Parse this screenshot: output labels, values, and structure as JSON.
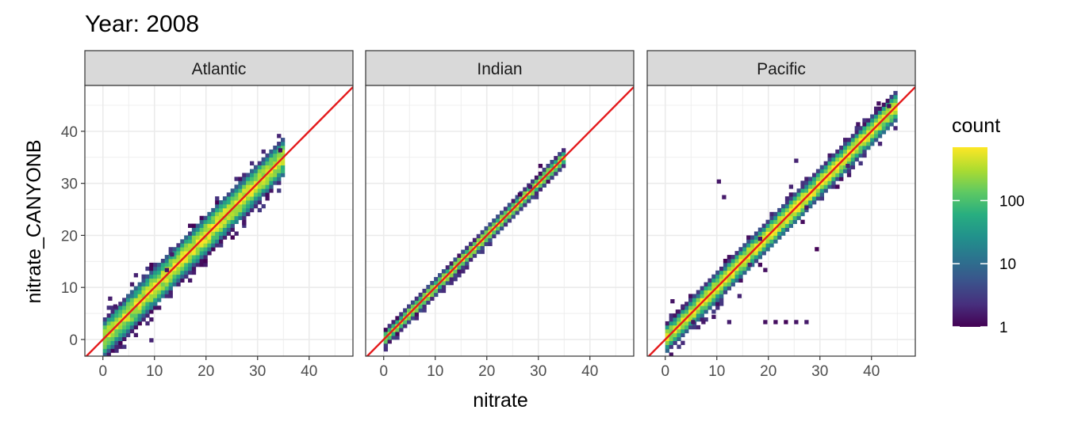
{
  "chart_data": {
    "type": "heatmap",
    "title": "Year: 2008",
    "xlabel": "nitrate",
    "ylabel": "nitrate_CANYONB",
    "xlim": [
      -3.5,
      48.5
    ],
    "ylim": [
      -3.2,
      48.8
    ],
    "x_ticks": [
      0,
      10,
      20,
      30,
      40
    ],
    "y_ticks": [
      0,
      10,
      20,
      30,
      40
    ],
    "grid": true,
    "reference_line": {
      "slope": 1,
      "intercept": 0,
      "color": "#e41a1c"
    },
    "legend": {
      "title": "count",
      "scale": "log10",
      "range": [
        1,
        700
      ],
      "ticks": [
        1,
        10,
        100
      ],
      "tick_labels": [
        "1",
        "10",
        "100"
      ],
      "placement": "right",
      "colors": [
        "#440154",
        "#472f7d",
        "#3b528b",
        "#2c728e",
        "#21918c",
        "#28ae80",
        "#5ec962",
        "#addc30",
        "#fde725"
      ]
    },
    "panels": [
      {
        "name": "Atlantic",
        "x_range": [
          0,
          35
        ],
        "spread": 2.2,
        "peak_count": 600,
        "outliers": [
          [
            9,
            -0.5
          ],
          [
            1,
            7.5
          ],
          [
            2,
            6
          ],
          [
            12,
            13
          ],
          [
            6,
            12
          ],
          [
            27,
            22
          ],
          [
            13,
            16
          ],
          [
            34,
            36
          ]
        ]
      },
      {
        "name": "Indian",
        "x_range": [
          0,
          35
        ],
        "spread": 0.9,
        "peak_count": 500,
        "outliers": [
          [
            30,
            33
          ],
          [
            28,
            29
          ],
          [
            26,
            27.5
          ]
        ]
      },
      {
        "name": "Pacific",
        "x_range": [
          0,
          45
        ],
        "spread": 1.6,
        "peak_count": 700,
        "outliers": [
          [
            10,
            30
          ],
          [
            11,
            27
          ],
          [
            25,
            34
          ],
          [
            24,
            29
          ],
          [
            27,
            25
          ],
          [
            35,
            33
          ],
          [
            19,
            3
          ],
          [
            21,
            3
          ],
          [
            23,
            3
          ],
          [
            25,
            3
          ],
          [
            27,
            3
          ],
          [
            29,
            17
          ],
          [
            1,
            7
          ],
          [
            2,
            5
          ],
          [
            3,
            6
          ],
          [
            5,
            3
          ],
          [
            6,
            2
          ],
          [
            9,
            4
          ],
          [
            7,
            3
          ],
          [
            12,
            3
          ],
          [
            14,
            8
          ],
          [
            18,
            19
          ],
          [
            43,
            44.5
          ],
          [
            37,
            41
          ],
          [
            41,
            45
          ],
          [
            16,
            14
          ],
          [
            19,
            13
          ]
        ]
      }
    ]
  }
}
